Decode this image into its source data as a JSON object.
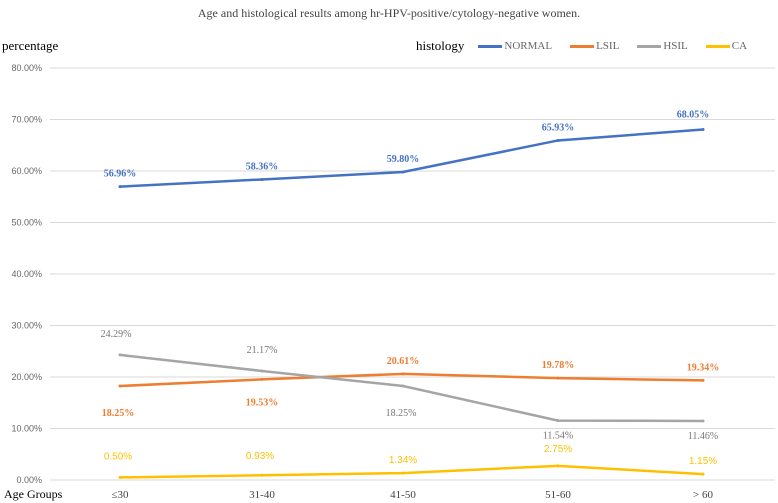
{
  "chart_data": {
    "type": "line",
    "title": "Age and histological results among hr-HPV-positive/cytology-negative women.",
    "ylabel": "percentage",
    "xlabel": "Age Groups",
    "legend_title": "histology",
    "legend_position": "top-right",
    "categories": [
      "≤30",
      "31-40",
      "41-50",
      "51-60",
      "> 60"
    ],
    "ylim": [
      0,
      80
    ],
    "yticks": [
      "0.00%",
      "10.00%",
      "20.00%",
      "30.00%",
      "40.00%",
      "50.00%",
      "60.00%",
      "70.00%",
      "80.00%"
    ],
    "grid": true,
    "series": [
      {
        "name": "NORMAL",
        "color": "#4472C4",
        "values": [
          56.96,
          58.36,
          59.8,
          65.93,
          68.05
        ],
        "labels": [
          "56.96%",
          "58.36%",
          "59.80%",
          "65.93%",
          "68.05%"
        ]
      },
      {
        "name": "LSIL",
        "color": "#ED7D31",
        "values": [
          18.25,
          19.53,
          20.61,
          19.78,
          19.34
        ],
        "labels": [
          "18.25%",
          "19.53%",
          "20.61%",
          "19.78%",
          "19.34%"
        ]
      },
      {
        "name": "HSIL",
        "color": "#A5A5A5",
        "values": [
          24.29,
          21.17,
          18.25,
          11.54,
          11.46
        ],
        "labels": [
          "24.29%",
          "21.17%",
          "18.25%",
          "11.54%",
          "11.46%"
        ]
      },
      {
        "name": "CA",
        "color": "#FFC000",
        "values": [
          0.5,
          0.93,
          1.34,
          2.75,
          1.15
        ],
        "labels": [
          "0.50%",
          "0.93%",
          "1.34%",
          "2.75%",
          "1.15%"
        ]
      }
    ]
  }
}
